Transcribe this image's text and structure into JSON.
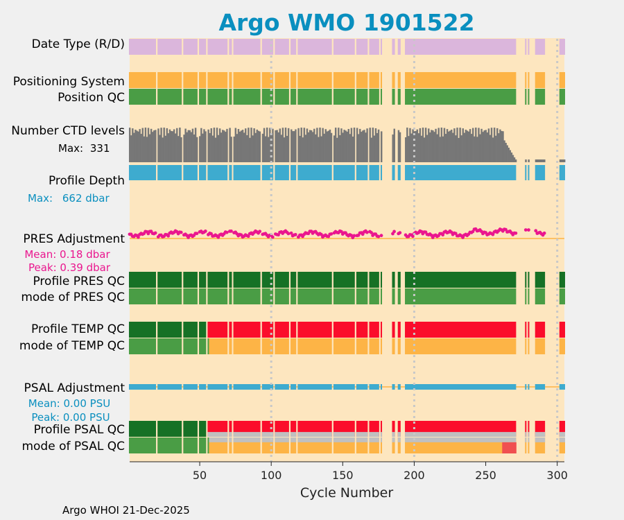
{
  "chart_data": {
    "type": "table",
    "title": "Argo WMO 1901522",
    "xlabel": "Cycle Number",
    "xlim": [
      1,
      305
    ],
    "xticks": [
      50,
      100,
      150,
      200,
      250,
      300
    ],
    "footer": "Argo WHOI 21-Dec-2025",
    "gap_cycles": [
      20,
      38,
      49,
      55,
      70,
      73,
      93,
      102,
      113,
      118,
      143,
      159,
      168,
      176
    ],
    "gap_ranges": [
      [
        178,
        184
      ],
      [
        187,
        188
      ],
      [
        191,
        193
      ],
      [
        272,
        305
      ]
    ],
    "sparse_late_cycles": [
      278,
      280,
      285,
      286,
      287,
      288,
      289,
      290,
      291,
      302,
      303,
      304,
      305
    ],
    "rows": [
      {
        "label": "Date Type (R/D)",
        "color": "#dbb6dc"
      },
      {
        "label": "Positioning System",
        "color": "#fdb446"
      },
      {
        "label": "Position QC",
        "color": "#4a9d45"
      },
      {
        "label": "Number CTD levels",
        "color": "#777777",
        "note_prefix": "Max:",
        "note_value": "331"
      },
      {
        "label": "Profile Depth",
        "color": "#3eabcf",
        "note_prefix": "Max:",
        "note_value": "662 dbar"
      },
      {
        "label": "PRES Adjustment",
        "color": "#ea168e",
        "mean_text": "Mean: 0.18 dbar",
        "peak_text": "Peak: 0.39 dbar"
      },
      {
        "label": "Profile PRES QC",
        "color": "#167125"
      },
      {
        "label": "mode of PRES QC",
        "color": "#4a9d45"
      },
      {
        "label": "Profile TEMP QC",
        "segments": [
          {
            "from": 1,
            "to": 55,
            "grade": "A",
            "color": "#167125"
          },
          {
            "from": 56,
            "to": 305,
            "grade": "F",
            "color": "#fb0d2b"
          }
        ]
      },
      {
        "label": "mode of TEMP QC",
        "segments": [
          {
            "from": 1,
            "to": 56,
            "qc": "1",
            "color": "#4a9d45"
          },
          {
            "from": 57,
            "to": 305,
            "qc": "3",
            "color": "#fdb446"
          }
        ]
      },
      {
        "label": "PSAL Adjustment",
        "color": "#3eabcf",
        "mean_text": "Mean: 0.00 PSU",
        "peak_text": "Peak: 0.00 PSU"
      },
      {
        "label": "Profile PSAL QC",
        "segments": [
          {
            "from": 1,
            "to": 54,
            "grade": "A",
            "color": "#167125"
          },
          {
            "from": 55,
            "to": 305,
            "grade": "F",
            "color": "#fb0d2b"
          }
        ]
      },
      {
        "label": "mode of PSAL QC",
        "segments": [
          {
            "from": 1,
            "to": 56,
            "qc": "1",
            "color": "#4a9d45"
          },
          {
            "from": 57,
            "to": 305,
            "qc": "3",
            "color": "#fdb446"
          }
        ]
      }
    ],
    "pres_adjustment": {
      "mean": 0.18,
      "peak": 0.39
    },
    "psal_adjustment": {
      "mean": 0.0,
      "peak": 0.0
    },
    "ctd_levels_max": 331,
    "profile_depth_max_dbar": 662
  },
  "colors": {
    "background": "#f0f0f0",
    "plot_background": "#fde6bf",
    "title": "#0a8fbf",
    "psal_stats": "#0a8fbf",
    "pres_stats": "#ea168e",
    "qc4_grey": "#c0c0c0",
    "qc4_red": "#f05050",
    "adjust_line": "#fdb446",
    "gridline": "#c8c8c8"
  }
}
